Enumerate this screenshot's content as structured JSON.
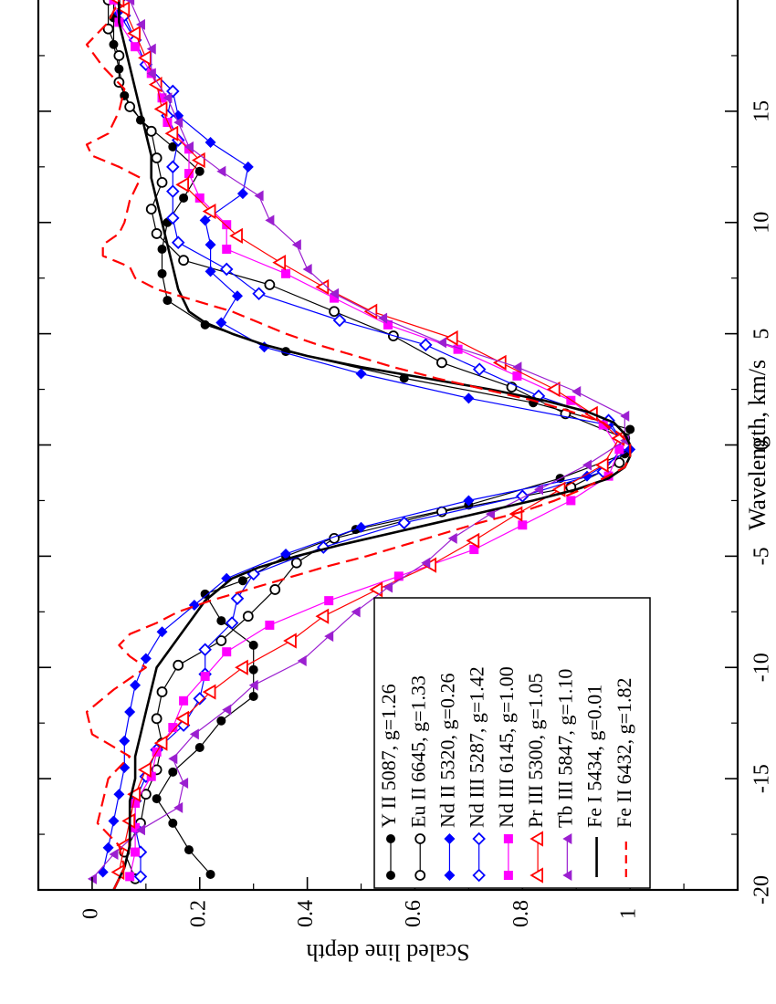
{
  "chart_data": {
    "type": "line",
    "orientation": "rotated-90-clockwise",
    "xlabel": "Wavelength, km/s",
    "ylabel": "Scaled line depth",
    "xlim": [
      -20,
      20
    ],
    "ylim": [
      -0.1,
      1.2
    ],
    "y_reversed": true,
    "x_ticks": [
      -20,
      -15,
      -10,
      -5,
      0,
      5,
      10,
      15
    ],
    "x_tick_labels": [
      "-20",
      "-15",
      "-10",
      "-5",
      "0",
      "5",
      "10",
      "15"
    ],
    "y_ticks": [
      0,
      0.2,
      0.4,
      0.6,
      0.8,
      1.0
    ],
    "y_tick_labels": [
      "0",
      "0.2",
      "0.4",
      "0.6",
      "0.8",
      "1"
    ],
    "legend_position": "bottom-right",
    "series": [
      {
        "name": "Y  II  5087, g=1.26",
        "color": "#000000",
        "marker": "filled-circle",
        "dash": "solid",
        "width": 1.2,
        "x": [
          -19.3,
          -18.2,
          -17.0,
          -15.9,
          -14.7,
          -13.6,
          -12.4,
          -11.3,
          -10.1,
          -9.0,
          -7.9,
          -6.7,
          -6.1,
          -5.0,
          -3.8,
          -2.7,
          -1.5,
          -0.4,
          0.7,
          1.9,
          3.0,
          4.2,
          5.4,
          6.5,
          7.7,
          8.8,
          10.0,
          11.1,
          12.3,
          13.4,
          14.6,
          15.7,
          16.9,
          18.0,
          19.2,
          20.0
        ],
        "y": [
          0.22,
          0.18,
          0.15,
          0.12,
          0.15,
          0.2,
          0.24,
          0.3,
          0.3,
          0.3,
          0.24,
          0.21,
          0.28,
          0.36,
          0.49,
          0.7,
          0.87,
          0.99,
          1.0,
          0.82,
          0.58,
          0.36,
          0.21,
          0.14,
          0.13,
          0.13,
          0.14,
          0.17,
          0.2,
          0.15,
          0.09,
          0.06,
          0.05,
          0.04,
          0.04,
          0.04
        ]
      },
      {
        "name": "Eu II  6645, g=1.33",
        "color": "#000000",
        "marker": "open-circle",
        "dash": "solid",
        "width": 1.2,
        "x": [
          -19.5,
          -18.3,
          -17.0,
          -15.7,
          -14.6,
          -13.4,
          -12.3,
          -11.1,
          -9.9,
          -8.8,
          -7.7,
          -6.5,
          -5.3,
          -4.2,
          -3.0,
          -1.9,
          -0.8,
          0.3,
          1.4,
          2.6,
          3.7,
          4.9,
          6.0,
          7.2,
          8.3,
          9.5,
          10.6,
          11.8,
          12.9,
          14.1,
          15.2,
          16.3,
          17.5,
          18.7,
          20.0
        ],
        "y": [
          0.08,
          0.06,
          0.09,
          0.1,
          0.12,
          0.13,
          0.12,
          0.13,
          0.16,
          0.24,
          0.29,
          0.34,
          0.38,
          0.45,
          0.65,
          0.89,
          0.98,
          0.99,
          0.88,
          0.78,
          0.65,
          0.56,
          0.45,
          0.33,
          0.17,
          0.12,
          0.11,
          0.13,
          0.12,
          0.11,
          0.07,
          0.05,
          0.05,
          0.03,
          0.03
        ]
      },
      {
        "name": "Nd II  5320, g=0.26",
        "color": "#0000ff",
        "marker": "filled-diamond",
        "dash": "solid",
        "width": 1.2,
        "x": [
          -19.2,
          -18.1,
          -16.9,
          -15.7,
          -14.5,
          -13.3,
          -12.0,
          -10.8,
          -9.6,
          -8.4,
          -7.2,
          -6.0,
          -4.9,
          -3.7,
          -2.5,
          -1.4,
          -0.2,
          0.9,
          2.1,
          3.2,
          4.4,
          5.5,
          6.7,
          7.8,
          9.0,
          10.1,
          11.3,
          12.5,
          13.6,
          14.8,
          15.9,
          17.1,
          18.2,
          19.4,
          20.0
        ],
        "y": [
          0.02,
          0.03,
          0.04,
          0.05,
          0.06,
          0.06,
          0.07,
          0.08,
          0.1,
          0.13,
          0.19,
          0.25,
          0.36,
          0.5,
          0.7,
          0.92,
          1.0,
          0.96,
          0.7,
          0.5,
          0.32,
          0.24,
          0.27,
          0.22,
          0.22,
          0.21,
          0.28,
          0.29,
          0.22,
          0.16,
          0.15,
          0.1,
          0.08,
          0.05,
          0.05
        ]
      },
      {
        "name": "Nd III 5287, g=1.42",
        "color": "#0000ff",
        "marker": "open-diamond",
        "dash": "solid",
        "width": 1.2,
        "x": [
          -19.4,
          -18.3,
          -17.2,
          -16.0,
          -14.9,
          -13.7,
          -12.6,
          -11.4,
          -10.3,
          -9.2,
          -8.0,
          -6.9,
          -5.8,
          -4.6,
          -3.5,
          -2.3,
          -1.2,
          0.0,
          1.1,
          2.2,
          3.4,
          4.5,
          5.6,
          6.8,
          7.9,
          9.1,
          10.2,
          11.4,
          12.5,
          13.7,
          14.8,
          15.9,
          17.1,
          18.2,
          19.3,
          20.0
        ],
        "y": [
          0.09,
          0.09,
          0.08,
          0.08,
          0.1,
          0.12,
          0.17,
          0.2,
          0.21,
          0.21,
          0.26,
          0.27,
          0.3,
          0.43,
          0.58,
          0.8,
          0.95,
          0.99,
          0.96,
          0.83,
          0.72,
          0.62,
          0.46,
          0.31,
          0.25,
          0.16,
          0.15,
          0.15,
          0.15,
          0.16,
          0.14,
          0.15,
          0.1,
          0.08,
          0.06,
          0.05
        ]
      },
      {
        "name": "Nd III 6145, g=1.00",
        "color": "#ff00ff",
        "marker": "filled-square",
        "dash": "solid",
        "width": 1.2,
        "x": [
          -19.4,
          -18.3,
          -17.2,
          -16.1,
          -14.9,
          -13.8,
          -12.7,
          -11.5,
          -10.4,
          -9.3,
          -8.1,
          -7.0,
          -5.9,
          -4.7,
          -3.6,
          -2.5,
          -1.4,
          -0.2,
          0.9,
          2.0,
          3.1,
          4.3,
          5.4,
          6.6,
          7.7,
          8.8,
          9.9,
          11.1,
          12.2,
          13.3,
          14.5,
          15.6,
          16.7,
          17.9,
          19.0,
          20.0
        ],
        "y": [
          0.07,
          0.08,
          0.08,
          0.08,
          0.11,
          0.12,
          0.15,
          0.17,
          0.21,
          0.25,
          0.33,
          0.44,
          0.57,
          0.71,
          0.8,
          0.89,
          0.96,
          0.98,
          0.95,
          0.89,
          0.79,
          0.68,
          0.55,
          0.45,
          0.36,
          0.25,
          0.25,
          0.2,
          0.18,
          0.18,
          0.14,
          0.13,
          0.11,
          0.08,
          0.05,
          0.04
        ]
      },
      {
        "name": "Pr III 5300, g=1.05",
        "color": "#ff0000",
        "marker": "open-triangle",
        "dash": "solid",
        "width": 1.2,
        "x": [
          -19.2,
          -18.0,
          -16.9,
          -15.7,
          -14.6,
          -13.4,
          -12.3,
          -11.1,
          -10.0,
          -8.8,
          -7.7,
          -6.5,
          -5.4,
          -4.3,
          -3.1,
          -2.0,
          -0.9,
          0.3,
          1.4,
          2.5,
          3.7,
          4.8,
          6.0,
          7.1,
          8.2,
          9.4,
          10.5,
          11.7,
          12.8,
          14.0,
          15.1,
          16.2,
          17.4,
          18.5,
          19.6,
          20.0
        ],
        "y": [
          0.05,
          0.06,
          0.07,
          0.08,
          0.1,
          0.13,
          0.17,
          0.22,
          0.28,
          0.37,
          0.43,
          0.53,
          0.63,
          0.71,
          0.79,
          0.87,
          0.95,
          0.98,
          0.93,
          0.86,
          0.76,
          0.67,
          0.52,
          0.43,
          0.35,
          0.27,
          0.22,
          0.17,
          0.2,
          0.15,
          0.13,
          0.12,
          0.1,
          0.08,
          0.06,
          0.05
        ]
      },
      {
        "name": "Tb III 5847, g=1.10",
        "color": "#9b1fd0",
        "marker": "filled-left-triangle",
        "dash": "solid",
        "width": 1.2,
        "x": [
          -19.5,
          -18.4,
          -17.3,
          -16.3,
          -15.2,
          -14.1,
          -13.0,
          -11.9,
          -10.8,
          -9.7,
          -8.6,
          -7.5,
          -6.4,
          -5.3,
          -4.2,
          -3.1,
          -2.0,
          -0.9,
          0.2,
          1.3,
          2.4,
          3.5,
          4.6,
          5.7,
          6.8,
          7.9,
          9.0,
          10.1,
          11.2,
          12.3,
          13.4,
          14.5,
          15.6,
          16.7,
          17.8,
          18.9,
          20.0
        ],
        "y": [
          0.0,
          0.04,
          0.09,
          0.16,
          0.17,
          0.15,
          0.19,
          0.25,
          0.3,
          0.39,
          0.44,
          0.49,
          0.55,
          0.62,
          0.67,
          0.74,
          0.83,
          0.92,
          0.99,
          0.99,
          0.9,
          0.79,
          0.65,
          0.54,
          0.45,
          0.4,
          0.38,
          0.33,
          0.31,
          0.24,
          0.18,
          0.16,
          0.14,
          0.11,
          0.11,
          0.09,
          0.07
        ]
      },
      {
        "name": "Fe  I  5434, g=0.01",
        "color": "#000000",
        "marker": "none",
        "dash": "solid",
        "width": 2.6,
        "x": [
          -20.0,
          -19.0,
          -18.0,
          -17.0,
          -16.0,
          -15.0,
          -14.0,
          -13.0,
          -12.0,
          -11.0,
          -10.0,
          -9.0,
          -8.0,
          -7.0,
          -6.0,
          -5.5,
          -5.0,
          -4.5,
          -4.0,
          -3.5,
          -3.0,
          -2.5,
          -2.0,
          -1.5,
          -1.0,
          -0.5,
          0.0,
          0.5,
          1.0,
          1.5,
          2.0,
          2.5,
          3.0,
          3.5,
          4.0,
          4.5,
          5.0,
          5.5,
          6.0,
          7.0,
          8.0,
          9.0,
          10.0,
          11.0,
          12.0,
          13.0,
          14.0,
          15.0,
          16.0,
          17.0,
          18.0,
          19.0,
          20.0
        ],
        "y": [
          0.04,
          0.06,
          0.07,
          0.07,
          0.07,
          0.08,
          0.08,
          0.09,
          0.1,
          0.11,
          0.12,
          0.15,
          0.18,
          0.21,
          0.26,
          0.31,
          0.38,
          0.46,
          0.55,
          0.64,
          0.73,
          0.82,
          0.9,
          0.96,
          0.99,
          1.0,
          1.0,
          0.99,
          0.97,
          0.92,
          0.84,
          0.74,
          0.62,
          0.5,
          0.4,
          0.32,
          0.26,
          0.21,
          0.18,
          0.16,
          0.15,
          0.14,
          0.13,
          0.12,
          0.11,
          0.11,
          0.1,
          0.09,
          0.08,
          0.07,
          0.06,
          0.05,
          0.05
        ]
      },
      {
        "name": "Fe  II  6432, g=1.82",
        "color": "#ff0000",
        "marker": "none",
        "dash": "dashed",
        "width": 2.2,
        "x": [
          -20.0,
          -19.0,
          -18.0,
          -17.0,
          -16.0,
          -15.0,
          -14.5,
          -14.0,
          -13.0,
          -12.0,
          -11.0,
          -10.0,
          -9.5,
          -9.0,
          -8.5,
          -8.0,
          -7.5,
          -7.0,
          -6.5,
          -6.0,
          -5.5,
          -5.0,
          -4.5,
          -4.0,
          -3.5,
          -3.0,
          -2.5,
          -2.0,
          -1.5,
          -1.0,
          -0.5,
          0.0,
          0.5,
          1.0,
          1.5,
          2.0,
          2.5,
          3.0,
          3.5,
          4.0,
          4.5,
          5.0,
          5.5,
          6.0,
          6.5,
          7.0,
          7.5,
          8.0,
          8.5,
          9.0,
          9.5,
          10.0,
          11.0,
          12.0,
          12.5,
          13.0,
          13.5,
          14.0,
          15.0,
          16.0,
          17.0,
          18.0,
          19.0,
          20.0
        ],
        "y": [
          0.04,
          0.06,
          0.05,
          0.01,
          0.02,
          0.03,
          0.05,
          0.07,
          0.0,
          -0.01,
          0.04,
          0.1,
          0.07,
          0.05,
          0.07,
          0.12,
          0.16,
          0.22,
          0.29,
          0.36,
          0.43,
          0.51,
          0.58,
          0.65,
          0.72,
          0.8,
          0.86,
          0.91,
          0.95,
          0.99,
          1.0,
          1.0,
          0.98,
          0.95,
          0.89,
          0.82,
          0.73,
          0.64,
          0.56,
          0.49,
          0.42,
          0.36,
          0.31,
          0.26,
          0.19,
          0.12,
          0.08,
          0.07,
          0.02,
          0.02,
          0.05,
          0.06,
          0.07,
          0.09,
          0.05,
          0.0,
          -0.01,
          0.03,
          0.05,
          0.06,
          0.02,
          -0.01,
          0.03,
          0.05
        ]
      }
    ]
  }
}
